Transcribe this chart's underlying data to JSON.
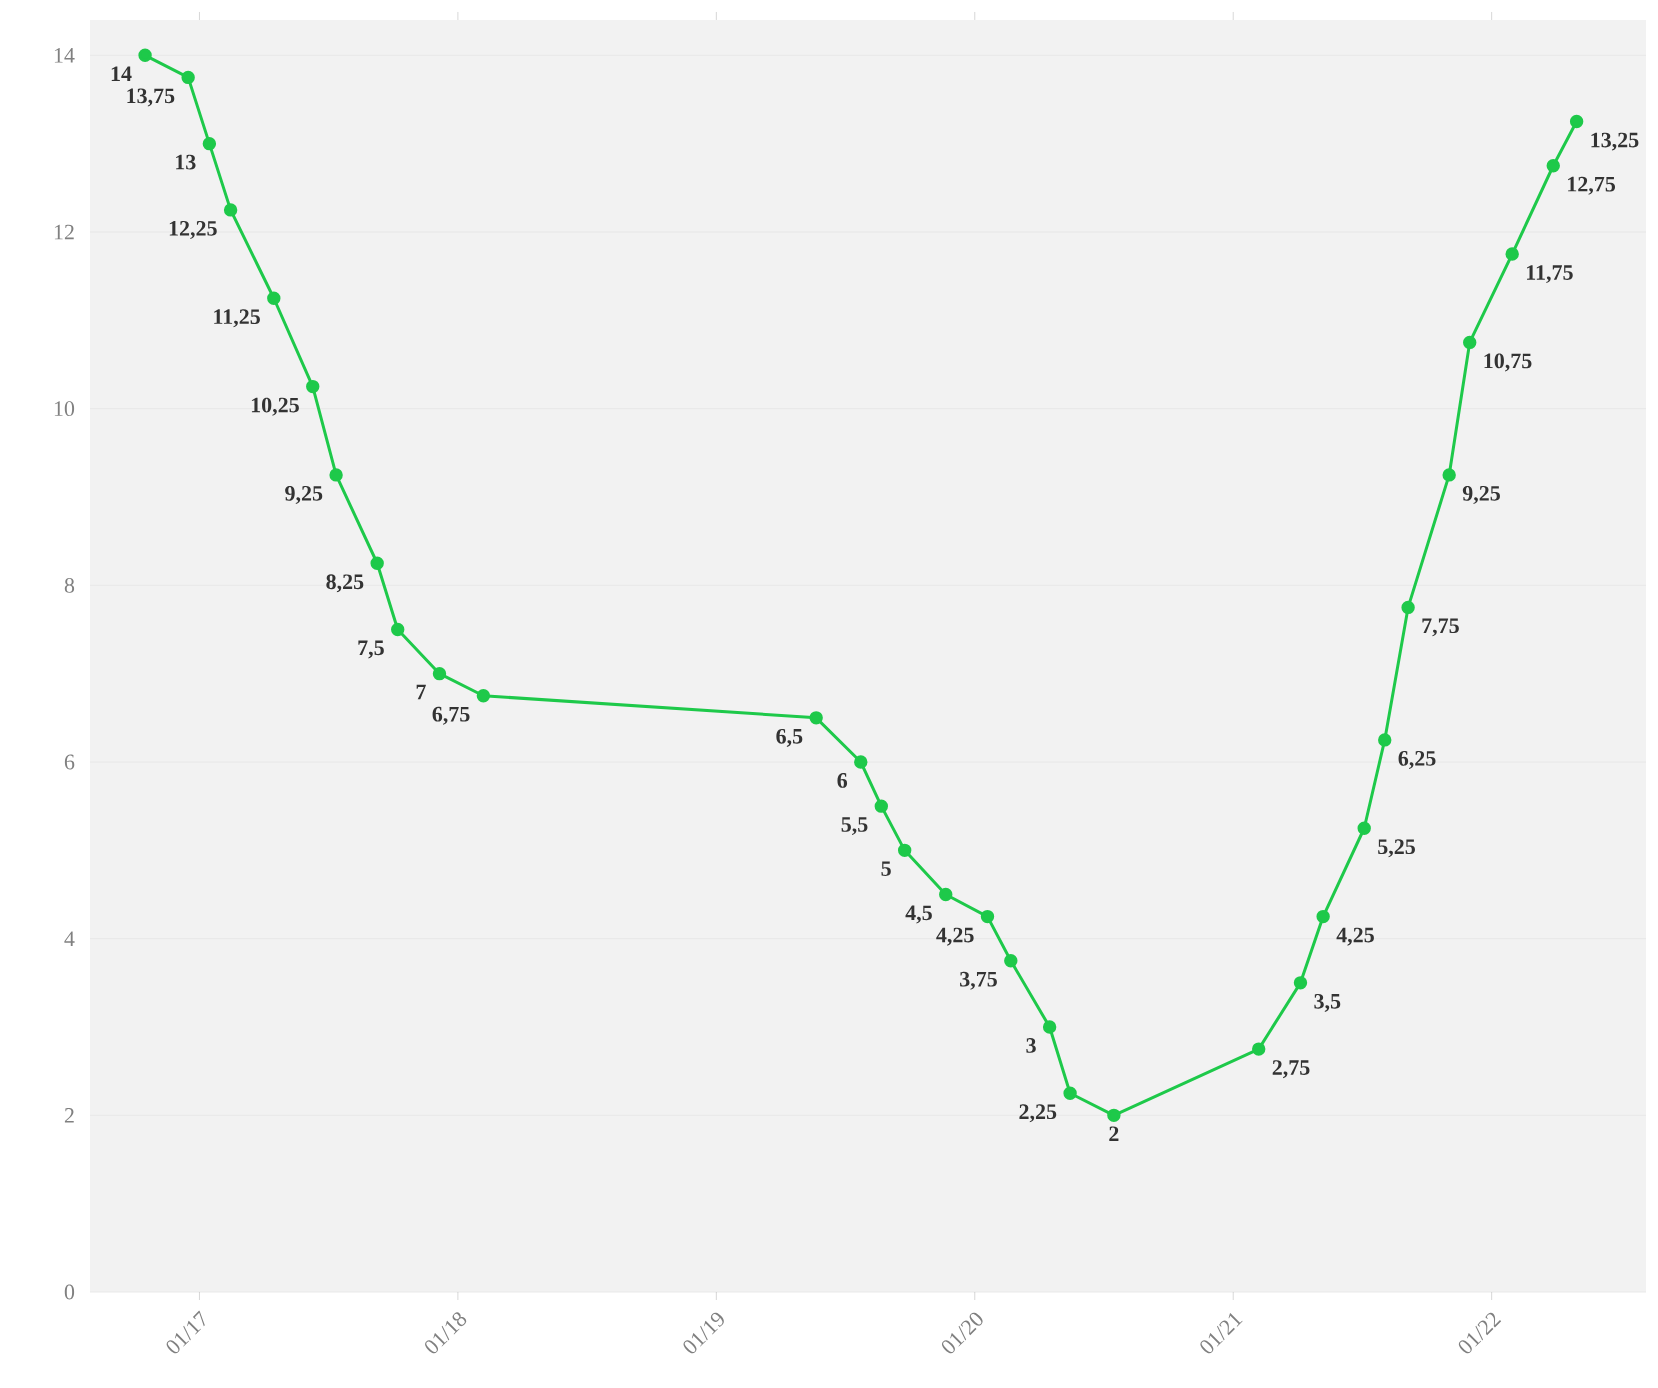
{
  "chart_data": {
    "type": "line",
    "x": [
      "2016-10-16",
      "2016-12-16",
      "2017-01-15",
      "2017-02-14",
      "2017-04-16",
      "2017-06-10",
      "2017-07-13",
      "2017-09-09",
      "2017-10-08",
      "2017-12-06",
      "2018-02-06",
      "2019-05-22",
      "2019-07-24",
      "2019-08-22",
      "2019-09-24",
      "2019-11-21",
      "2020-01-19",
      "2020-02-21",
      "2020-04-16",
      "2020-05-15",
      "2020-07-16",
      "2021-02-06",
      "2021-04-06",
      "2021-05-08",
      "2021-07-05",
      "2021-08-03",
      "2021-09-05",
      "2021-11-02",
      "2021-12-01",
      "2022-01-30",
      "2022-03-29",
      "2022-05-01"
    ],
    "values": [
      14,
      13.75,
      13,
      12.25,
      11.25,
      10.25,
      9.25,
      8.25,
      7.5,
      7,
      6.75,
      6.5,
      6,
      5.5,
      5,
      4.5,
      4.25,
      3.75,
      3,
      2.25,
      2,
      2.75,
      3.5,
      4.25,
      5.25,
      6.25,
      7.75,
      9.25,
      10.75,
      11.75,
      12.75,
      13.25
    ],
    "value_labels": [
      "14",
      "13,75",
      "13",
      "12,25",
      "11,25",
      "10,25",
      "9,25",
      "8,25",
      "7,5",
      "7",
      "6,75",
      "6,5",
      "6",
      "5,5",
      "5",
      "4,5",
      "4,25",
      "3,75",
      "3",
      "2,25",
      "2",
      "2,75",
      "3,5",
      "4,25",
      "5,25",
      "6,25",
      "7,75",
      "9,25",
      "10,75",
      "11,75",
      "12,75",
      "13,25"
    ],
    "color": "#1ec94a",
    "marker": "circle",
    "line_style": "solid",
    "grid": "y",
    "xlim": [
      "2016-07-30",
      "2022-08-07"
    ],
    "xticks": [
      {
        "value": "2017-01-01",
        "label": "01/17"
      },
      {
        "value": "2018-01-01",
        "label": "01/18"
      },
      {
        "value": "2019-01-01",
        "label": "01/19"
      },
      {
        "value": "2020-01-01",
        "label": "01/20"
      },
      {
        "value": "2021-01-01",
        "label": "01/21"
      },
      {
        "value": "2022-01-01",
        "label": "01/22"
      }
    ],
    "ylim": [
      0,
      14.4
    ],
    "yticks": [
      0,
      2,
      4,
      6,
      8,
      10,
      12,
      14
    ]
  }
}
